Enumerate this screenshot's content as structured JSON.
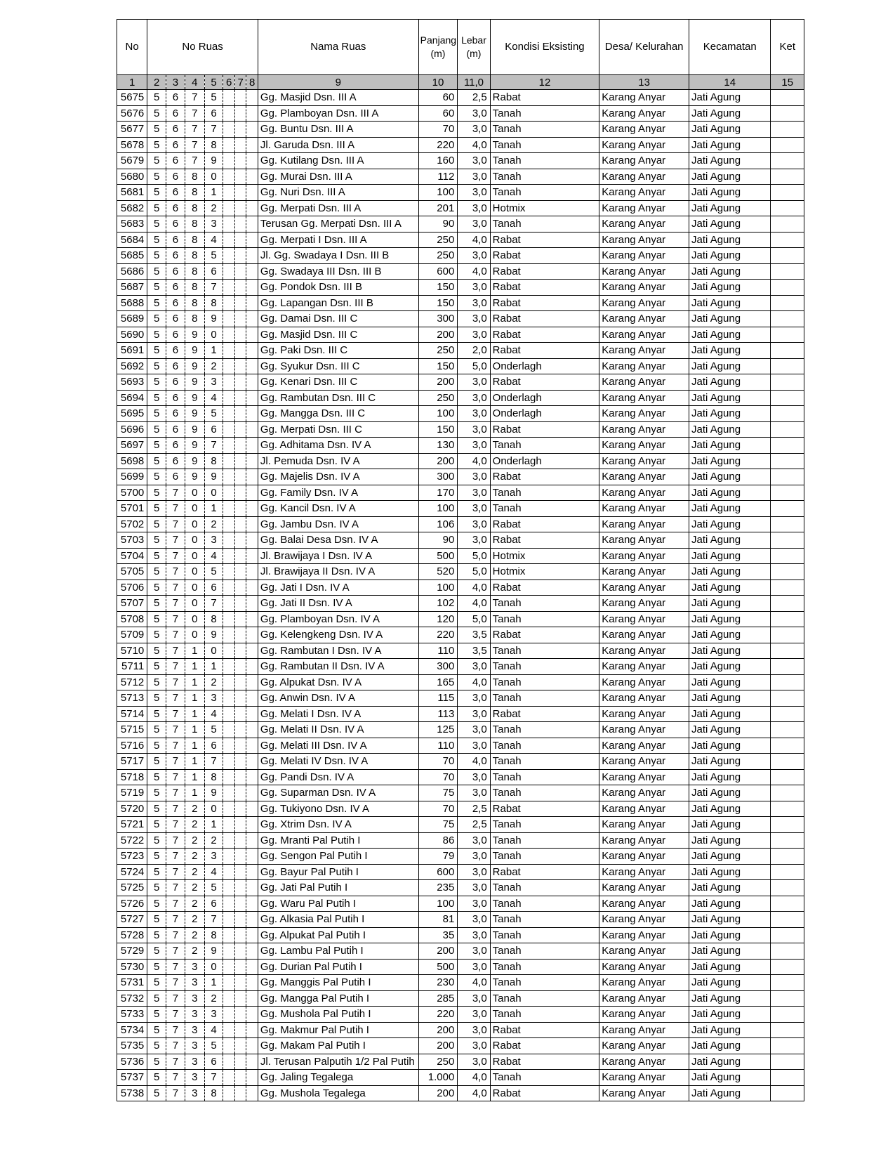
{
  "headers": {
    "no": "No",
    "no_ruas": "No Ruas",
    "nama_ruas": "Nama Ruas",
    "panjang": "Panjang (m)",
    "lebar": "Lebar (m)",
    "kondisi": "Kondisi Eksisting",
    "desa": "Desa/ Kelurahan",
    "kecamatan": "Kecamatan",
    "ket": "Ket"
  },
  "column_numbers": [
    "1",
    "2",
    "3",
    "4",
    "5",
    "6",
    "7",
    "8",
    "9",
    "10",
    "11,0",
    "12",
    "13",
    "14",
    "15"
  ],
  "rows": [
    [
      "5675",
      "5",
      "6",
      "7",
      "5",
      "",
      "",
      "",
      "Gg. Masjid  Dsn. III A",
      "60",
      "2,5",
      "Rabat",
      "Karang Anyar",
      "Jati Agung",
      ""
    ],
    [
      "5676",
      "5",
      "6",
      "7",
      "6",
      "",
      "",
      "",
      "Gg. Plamboyan  Dsn. III A",
      "60",
      "3,0",
      "Tanah",
      "Karang Anyar",
      "Jati Agung",
      ""
    ],
    [
      "5677",
      "5",
      "6",
      "7",
      "7",
      "",
      "",
      "",
      "Gg. Buntu  Dsn. III A",
      "70",
      "3,0",
      "Tanah",
      "Karang Anyar",
      "Jati Agung",
      ""
    ],
    [
      "5678",
      "5",
      "6",
      "7",
      "8",
      "",
      "",
      "",
      "Jl. Garuda  Dsn. III A",
      "220",
      "4,0",
      "Tanah",
      "Karang Anyar",
      "Jati Agung",
      ""
    ],
    [
      "5679",
      "5",
      "6",
      "7",
      "9",
      "",
      "",
      "",
      "Gg. Kutilang  Dsn. III A",
      "160",
      "3,0",
      "Tanah",
      "Karang Anyar",
      "Jati Agung",
      ""
    ],
    [
      "5680",
      "5",
      "6",
      "8",
      "0",
      "",
      "",
      "",
      "Gg. Murai  Dsn. III A",
      "112",
      "3,0",
      "Tanah",
      "Karang Anyar",
      "Jati Agung",
      ""
    ],
    [
      "5681",
      "5",
      "6",
      "8",
      "1",
      "",
      "",
      "",
      "Gg. Nuri  Dsn. III A",
      "100",
      "3,0",
      "Tanah",
      "Karang Anyar",
      "Jati Agung",
      ""
    ],
    [
      "5682",
      "5",
      "6",
      "8",
      "2",
      "",
      "",
      "",
      "Gg. Merpati  Dsn. III A",
      "201",
      "3,0",
      "Hotmix",
      "Karang Anyar",
      "Jati Agung",
      ""
    ],
    [
      "5683",
      "5",
      "6",
      "8",
      "3",
      "",
      "",
      "",
      "Terusan Gg. Merpati  Dsn. III A",
      "90",
      "3,0",
      "Tanah",
      "Karang Anyar",
      "Jati Agung",
      ""
    ],
    [
      "5684",
      "5",
      "6",
      "8",
      "4",
      "",
      "",
      "",
      "Gg. Merpati I  Dsn. III A",
      "250",
      "4,0",
      "Rabat",
      "Karang Anyar",
      "Jati Agung",
      ""
    ],
    [
      "5685",
      "5",
      "6",
      "8",
      "5",
      "",
      "",
      "",
      "Jl. Gg. Swadaya I  Dsn. III B",
      "250",
      "3,0",
      "Rabat",
      "Karang Anyar",
      "Jati Agung",
      ""
    ],
    [
      "5686",
      "5",
      "6",
      "8",
      "6",
      "",
      "",
      "",
      "Gg. Swadaya III  Dsn. III B",
      "600",
      "4,0",
      "Rabat",
      "Karang Anyar",
      "Jati Agung",
      ""
    ],
    [
      "5687",
      "5",
      "6",
      "8",
      "7",
      "",
      "",
      "",
      "Gg. Pondok  Dsn. III B",
      "150",
      "3,0",
      "Rabat",
      "Karang Anyar",
      "Jati Agung",
      ""
    ],
    [
      "5688",
      "5",
      "6",
      "8",
      "8",
      "",
      "",
      "",
      "Gg. Lapangan  Dsn. III B",
      "150",
      "3,0",
      "Rabat",
      "Karang Anyar",
      "Jati Agung",
      ""
    ],
    [
      "5689",
      "5",
      "6",
      "8",
      "9",
      "",
      "",
      "",
      "Gg. Damai  Dsn. III C",
      "300",
      "3,0",
      "Rabat",
      "Karang Anyar",
      "Jati Agung",
      ""
    ],
    [
      "5690",
      "5",
      "6",
      "9",
      "0",
      "",
      "",
      "",
      "Gg. Masjid  Dsn. III C",
      "200",
      "3,0",
      "Rabat",
      "Karang Anyar",
      "Jati Agung",
      ""
    ],
    [
      "5691",
      "5",
      "6",
      "9",
      "1",
      "",
      "",
      "",
      "Gg. Paki  Dsn. III C",
      "250",
      "2,0",
      "Rabat",
      "Karang Anyar",
      "Jati Agung",
      ""
    ],
    [
      "5692",
      "5",
      "6",
      "9",
      "2",
      "",
      "",
      "",
      "Gg. Syukur  Dsn. III C",
      "150",
      "5,0",
      "Onderlagh",
      "Karang Anyar",
      "Jati Agung",
      ""
    ],
    [
      "5693",
      "5",
      "6",
      "9",
      "3",
      "",
      "",
      "",
      "Gg. Kenari  Dsn. III C",
      "200",
      "3,0",
      "Rabat",
      "Karang Anyar",
      "Jati Agung",
      ""
    ],
    [
      "5694",
      "5",
      "6",
      "9",
      "4",
      "",
      "",
      "",
      "Gg. Rambutan  Dsn. III C",
      "250",
      "3,0",
      "Onderlagh",
      "Karang Anyar",
      "Jati Agung",
      ""
    ],
    [
      "5695",
      "5",
      "6",
      "9",
      "5",
      "",
      "",
      "",
      "Gg. Mangga  Dsn. III C",
      "100",
      "3,0",
      "Onderlagh",
      "Karang Anyar",
      "Jati Agung",
      ""
    ],
    [
      "5696",
      "5",
      "6",
      "9",
      "6",
      "",
      "",
      "",
      "Gg. Merpati  Dsn. III C",
      "150",
      "3,0",
      "Rabat",
      "Karang Anyar",
      "Jati Agung",
      ""
    ],
    [
      "5697",
      "5",
      "6",
      "9",
      "7",
      "",
      "",
      "",
      "Gg. Adhitama  Dsn. IV A",
      "130",
      "3,0",
      "Tanah",
      "Karang Anyar",
      "Jati Agung",
      ""
    ],
    [
      "5698",
      "5",
      "6",
      "9",
      "8",
      "",
      "",
      "",
      "Jl. Pemuda  Dsn. IV A",
      "200",
      "4,0",
      "Onderlagh",
      "Karang Anyar",
      "Jati Agung",
      ""
    ],
    [
      "5699",
      "5",
      "6",
      "9",
      "9",
      "",
      "",
      "",
      "Gg. Majelis   Dsn. IV A",
      "300",
      "3,0",
      "Rabat",
      "Karang Anyar",
      "Jati Agung",
      ""
    ],
    [
      "5700",
      "5",
      "7",
      "0",
      "0",
      "",
      "",
      "",
      "Gg. Family  Dsn. IV A",
      "170",
      "3,0",
      "Tanah",
      "Karang Anyar",
      "Jati Agung",
      ""
    ],
    [
      "5701",
      "5",
      "7",
      "0",
      "1",
      "",
      "",
      "",
      "Gg. Kancil  Dsn. IV A",
      "100",
      "3,0",
      "Tanah",
      "Karang Anyar",
      "Jati Agung",
      ""
    ],
    [
      "5702",
      "5",
      "7",
      "0",
      "2",
      "",
      "",
      "",
      "Gg. Jambu  Dsn. IV A",
      "106",
      "3,0",
      "Rabat",
      "Karang Anyar",
      "Jati Agung",
      ""
    ],
    [
      "5703",
      "5",
      "7",
      "0",
      "3",
      "",
      "",
      "",
      "Gg. Balai Desa  Dsn. IV A",
      "90",
      "3,0",
      "Rabat",
      "Karang Anyar",
      "Jati Agung",
      ""
    ],
    [
      "5704",
      "5",
      "7",
      "0",
      "4",
      "",
      "",
      "",
      "Jl. Brawijaya I  Dsn. IV A",
      "500",
      "5,0",
      "Hotmix",
      "Karang Anyar",
      "Jati Agung",
      ""
    ],
    [
      "5705",
      "5",
      "7",
      "0",
      "5",
      "",
      "",
      "",
      "Jl. Brawijaya II  Dsn. IV A",
      "520",
      "5,0",
      "Hotmix",
      "Karang Anyar",
      "Jati Agung",
      ""
    ],
    [
      "5706",
      "5",
      "7",
      "0",
      "6",
      "",
      "",
      "",
      "Gg. Jati I  Dsn. IV A",
      "100",
      "4,0",
      "Rabat",
      "Karang Anyar",
      "Jati Agung",
      ""
    ],
    [
      "5707",
      "5",
      "7",
      "0",
      "7",
      "",
      "",
      "",
      "Gg. Jati II  Dsn. IV A",
      "102",
      "4,0",
      "Tanah",
      "Karang Anyar",
      "Jati Agung",
      ""
    ],
    [
      "5708",
      "5",
      "7",
      "0",
      "8",
      "",
      "",
      "",
      "Gg. Plamboyan  Dsn. IV A",
      "120",
      "5,0",
      "Tanah",
      "Karang Anyar",
      "Jati Agung",
      ""
    ],
    [
      "5709",
      "5",
      "7",
      "0",
      "9",
      "",
      "",
      "",
      "Gg. Kelengkeng  Dsn. IV A",
      "220",
      "3,5",
      "Rabat",
      "Karang Anyar",
      "Jati Agung",
      ""
    ],
    [
      "5710",
      "5",
      "7",
      "1",
      "0",
      "",
      "",
      "",
      "Gg. Rambutan I  Dsn. IV A",
      "110",
      "3,5",
      "Tanah",
      "Karang Anyar",
      "Jati Agung",
      ""
    ],
    [
      "5711",
      "5",
      "7",
      "1",
      "1",
      "",
      "",
      "",
      "Gg. Rambutan II  Dsn. IV A",
      "300",
      "3,0",
      "Tanah",
      "Karang Anyar",
      "Jati Agung",
      ""
    ],
    [
      "5712",
      "5",
      "7",
      "1",
      "2",
      "",
      "",
      "",
      "Gg. Alpukat  Dsn. IV A",
      "165",
      "4,0",
      "Tanah",
      "Karang Anyar",
      "Jati Agung",
      ""
    ],
    [
      "5713",
      "5",
      "7",
      "1",
      "3",
      "",
      "",
      "",
      "Gg. Anwin  Dsn. IV A",
      "115",
      "3,0",
      "Tanah",
      "Karang Anyar",
      "Jati Agung",
      ""
    ],
    [
      "5714",
      "5",
      "7",
      "1",
      "4",
      "",
      "",
      "",
      "Gg. Melati I  Dsn. IV A",
      "113",
      "3,0",
      "Rabat",
      "Karang Anyar",
      "Jati Agung",
      ""
    ],
    [
      "5715",
      "5",
      "7",
      "1",
      "5",
      "",
      "",
      "",
      "Gg. Melati II  Dsn. IV A",
      "125",
      "3,0",
      "Tanah",
      "Karang Anyar",
      "Jati Agung",
      ""
    ],
    [
      "5716",
      "5",
      "7",
      "1",
      "6",
      "",
      "",
      "",
      "Gg. Melati III  Dsn. IV A",
      "110",
      "3,0",
      "Tanah",
      "Karang Anyar",
      "Jati Agung",
      ""
    ],
    [
      "5717",
      "5",
      "7",
      "1",
      "7",
      "",
      "",
      "",
      "Gg. Melati IV  Dsn. IV A",
      "70",
      "4,0",
      "Tanah",
      "Karang Anyar",
      "Jati Agung",
      ""
    ],
    [
      "5718",
      "5",
      "7",
      "1",
      "8",
      "",
      "",
      "",
      "Gg. Pandi  Dsn. IV A",
      "70",
      "3,0",
      "Tanah",
      "Karang Anyar",
      "Jati Agung",
      ""
    ],
    [
      "5719",
      "5",
      "7",
      "1",
      "9",
      "",
      "",
      "",
      "Gg. Suparman  Dsn. IV A",
      "75",
      "3,0",
      "Tanah",
      "Karang Anyar",
      "Jati Agung",
      ""
    ],
    [
      "5720",
      "5",
      "7",
      "2",
      "0",
      "",
      "",
      "",
      "Gg. Tukiyono  Dsn. IV A",
      "70",
      "2,5",
      "Rabat",
      "Karang Anyar",
      "Jati Agung",
      ""
    ],
    [
      "5721",
      "5",
      "7",
      "2",
      "1",
      "",
      "",
      "",
      "Gg. Xtrim  Dsn. IV A",
      "75",
      "2,5",
      "Tanah",
      "Karang Anyar",
      "Jati Agung",
      ""
    ],
    [
      "5722",
      "5",
      "7",
      "2",
      "2",
      "",
      "",
      "",
      "Gg. Mranti  Pal Putih I",
      "86",
      "3,0",
      "Tanah",
      "Karang Anyar",
      "Jati Agung",
      ""
    ],
    [
      "5723",
      "5",
      "7",
      "2",
      "3",
      "",
      "",
      "",
      "Gg. Sengon  Pal Putih I",
      "79",
      "3,0",
      "Tanah",
      "Karang Anyar",
      "Jati Agung",
      ""
    ],
    [
      "5724",
      "5",
      "7",
      "2",
      "4",
      "",
      "",
      "",
      "Gg. Bayur  Pal Putih I",
      "600",
      "3,0",
      "Rabat",
      "Karang Anyar",
      "Jati Agung",
      ""
    ],
    [
      "5725",
      "5",
      "7",
      "2",
      "5",
      "",
      "",
      "",
      "Gg. Jati  Pal Putih I",
      "235",
      "3,0",
      "Tanah",
      "Karang Anyar",
      "Jati Agung",
      ""
    ],
    [
      "5726",
      "5",
      "7",
      "2",
      "6",
      "",
      "",
      "",
      "Gg. Waru  Pal Putih I",
      "100",
      "3,0",
      "Tanah",
      "Karang Anyar",
      "Jati Agung",
      ""
    ],
    [
      "5727",
      "5",
      "7",
      "2",
      "7",
      "",
      "",
      "",
      "Gg. Alkasia  Pal Putih I",
      "81",
      "3,0",
      "Tanah",
      "Karang Anyar",
      "Jati Agung",
      ""
    ],
    [
      "5728",
      "5",
      "7",
      "2",
      "8",
      "",
      "",
      "",
      "Gg. Alpukat   Pal Putih I",
      "35",
      "3,0",
      "Tanah",
      "Karang Anyar",
      "Jati Agung",
      ""
    ],
    [
      "5729",
      "5",
      "7",
      "2",
      "9",
      "",
      "",
      "",
      "Gg. Lambu  Pal Putih I",
      "200",
      "3,0",
      "Tanah",
      "Karang Anyar",
      "Jati Agung",
      ""
    ],
    [
      "5730",
      "5",
      "7",
      "3",
      "0",
      "",
      "",
      "",
      "Gg. Durian  Pal Putih I",
      "500",
      "3,0",
      "Tanah",
      "Karang Anyar",
      "Jati Agung",
      ""
    ],
    [
      "5731",
      "5",
      "7",
      "3",
      "1",
      "",
      "",
      "",
      "Gg. Manggis  Pal Putih I",
      "230",
      "4,0",
      "Tanah",
      "Karang Anyar",
      "Jati Agung",
      ""
    ],
    [
      "5732",
      "5",
      "7",
      "3",
      "2",
      "",
      "",
      "",
      "Gg. Mangga  Pal Putih I",
      "285",
      "3,0",
      "Tanah",
      "Karang Anyar",
      "Jati Agung",
      ""
    ],
    [
      "5733",
      "5",
      "7",
      "3",
      "3",
      "",
      "",
      "",
      "Gg. Mushola  Pal Putih I",
      "220",
      "3,0",
      "Tanah",
      "Karang Anyar",
      "Jati Agung",
      ""
    ],
    [
      "5734",
      "5",
      "7",
      "3",
      "4",
      "",
      "",
      "",
      "Gg. Makmur  Pal Putih I",
      "200",
      "3,0",
      "Rabat",
      "Karang Anyar",
      "Jati Agung",
      ""
    ],
    [
      "5735",
      "5",
      "7",
      "3",
      "5",
      "",
      "",
      "",
      "Gg. Makam  Pal Putih I",
      "200",
      "3,0",
      "Rabat",
      "Karang Anyar",
      "Jati Agung",
      ""
    ],
    [
      "5736",
      "5",
      "7",
      "3",
      "6",
      "",
      "",
      "",
      "Jl. Terusan Palputih 1/2  Pal Putih I",
      "250",
      "3,0",
      "Rabat",
      "Karang Anyar",
      "Jati Agung",
      ""
    ],
    [
      "5737",
      "5",
      "7",
      "3",
      "7",
      "",
      "",
      "",
      "Gg. Jaling  Tegalega",
      "1.000",
      "4,0",
      "Tanah",
      "Karang Anyar",
      "Jati Agung",
      ""
    ],
    [
      "5738",
      "5",
      "7",
      "3",
      "8",
      "",
      "",
      "",
      "Gg. Mushola  Tegalega",
      "200",
      "4,0",
      "Rabat",
      "Karang Anyar",
      "Jati Agung",
      ""
    ]
  ]
}
